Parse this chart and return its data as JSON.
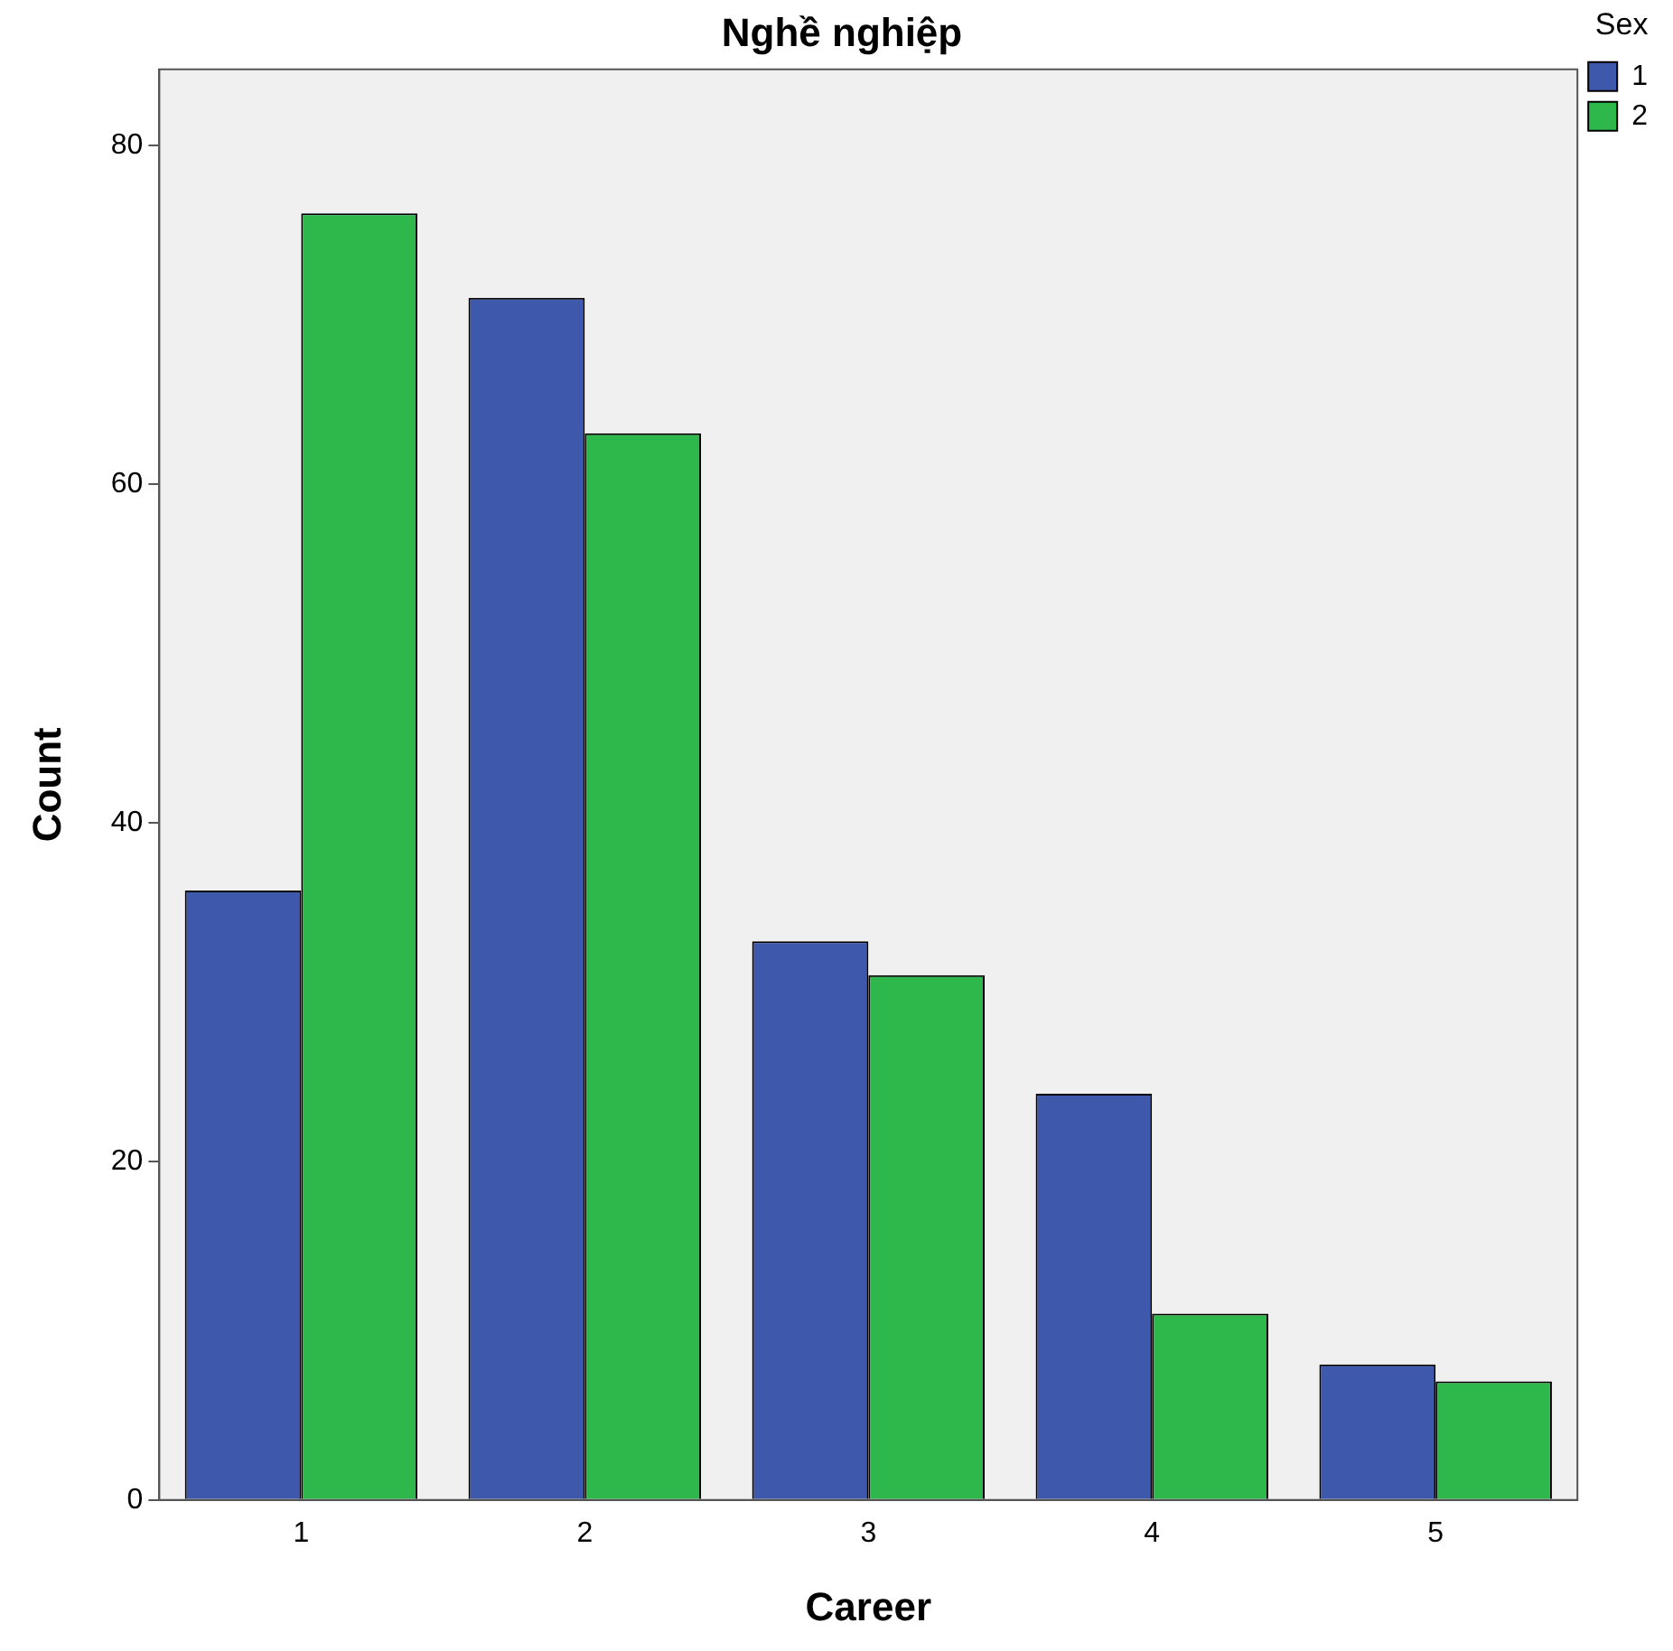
{
  "chart_data": {
    "type": "bar",
    "title": "Nghề nghiệp",
    "xlabel": "Career",
    "ylabel": "Count",
    "legend_title": "Sex",
    "categories": [
      "1",
      "2",
      "3",
      "4",
      "5"
    ],
    "series": [
      {
        "name": "1",
        "color": "#3e58ac",
        "values": [
          36,
          71,
          33,
          24,
          8
        ]
      },
      {
        "name": "2",
        "color": "#2eb84b",
        "values": [
          76,
          63,
          31,
          11,
          7
        ]
      }
    ],
    "ylim": [
      0,
      84.5
    ],
    "yticks": [
      0,
      20,
      40,
      60,
      80
    ],
    "grid": false,
    "legend": "top right"
  }
}
